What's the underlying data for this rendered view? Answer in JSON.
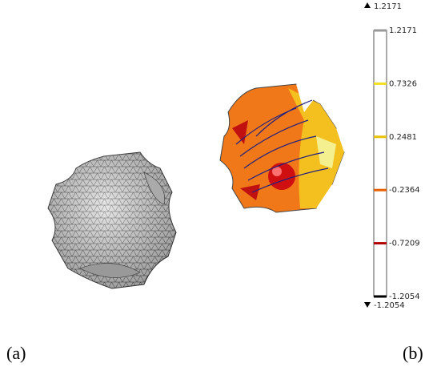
{
  "panels": [
    {
      "label": "(a)"
    },
    {
      "label": "(b)"
    }
  ],
  "colorbar": {
    "max": 1.2171,
    "min": -1.2054,
    "lim": [
      -1.2054,
      1.2171
    ],
    "ticks": [
      1.2171,
      0.7326,
      0.2481,
      -0.2364,
      -0.7209,
      -1.2054
    ],
    "tick_colors": [
      "#999999",
      "#f0e020",
      "#e8c000",
      "#e86000",
      "#b00000",
      "#000000"
    ]
  }
}
